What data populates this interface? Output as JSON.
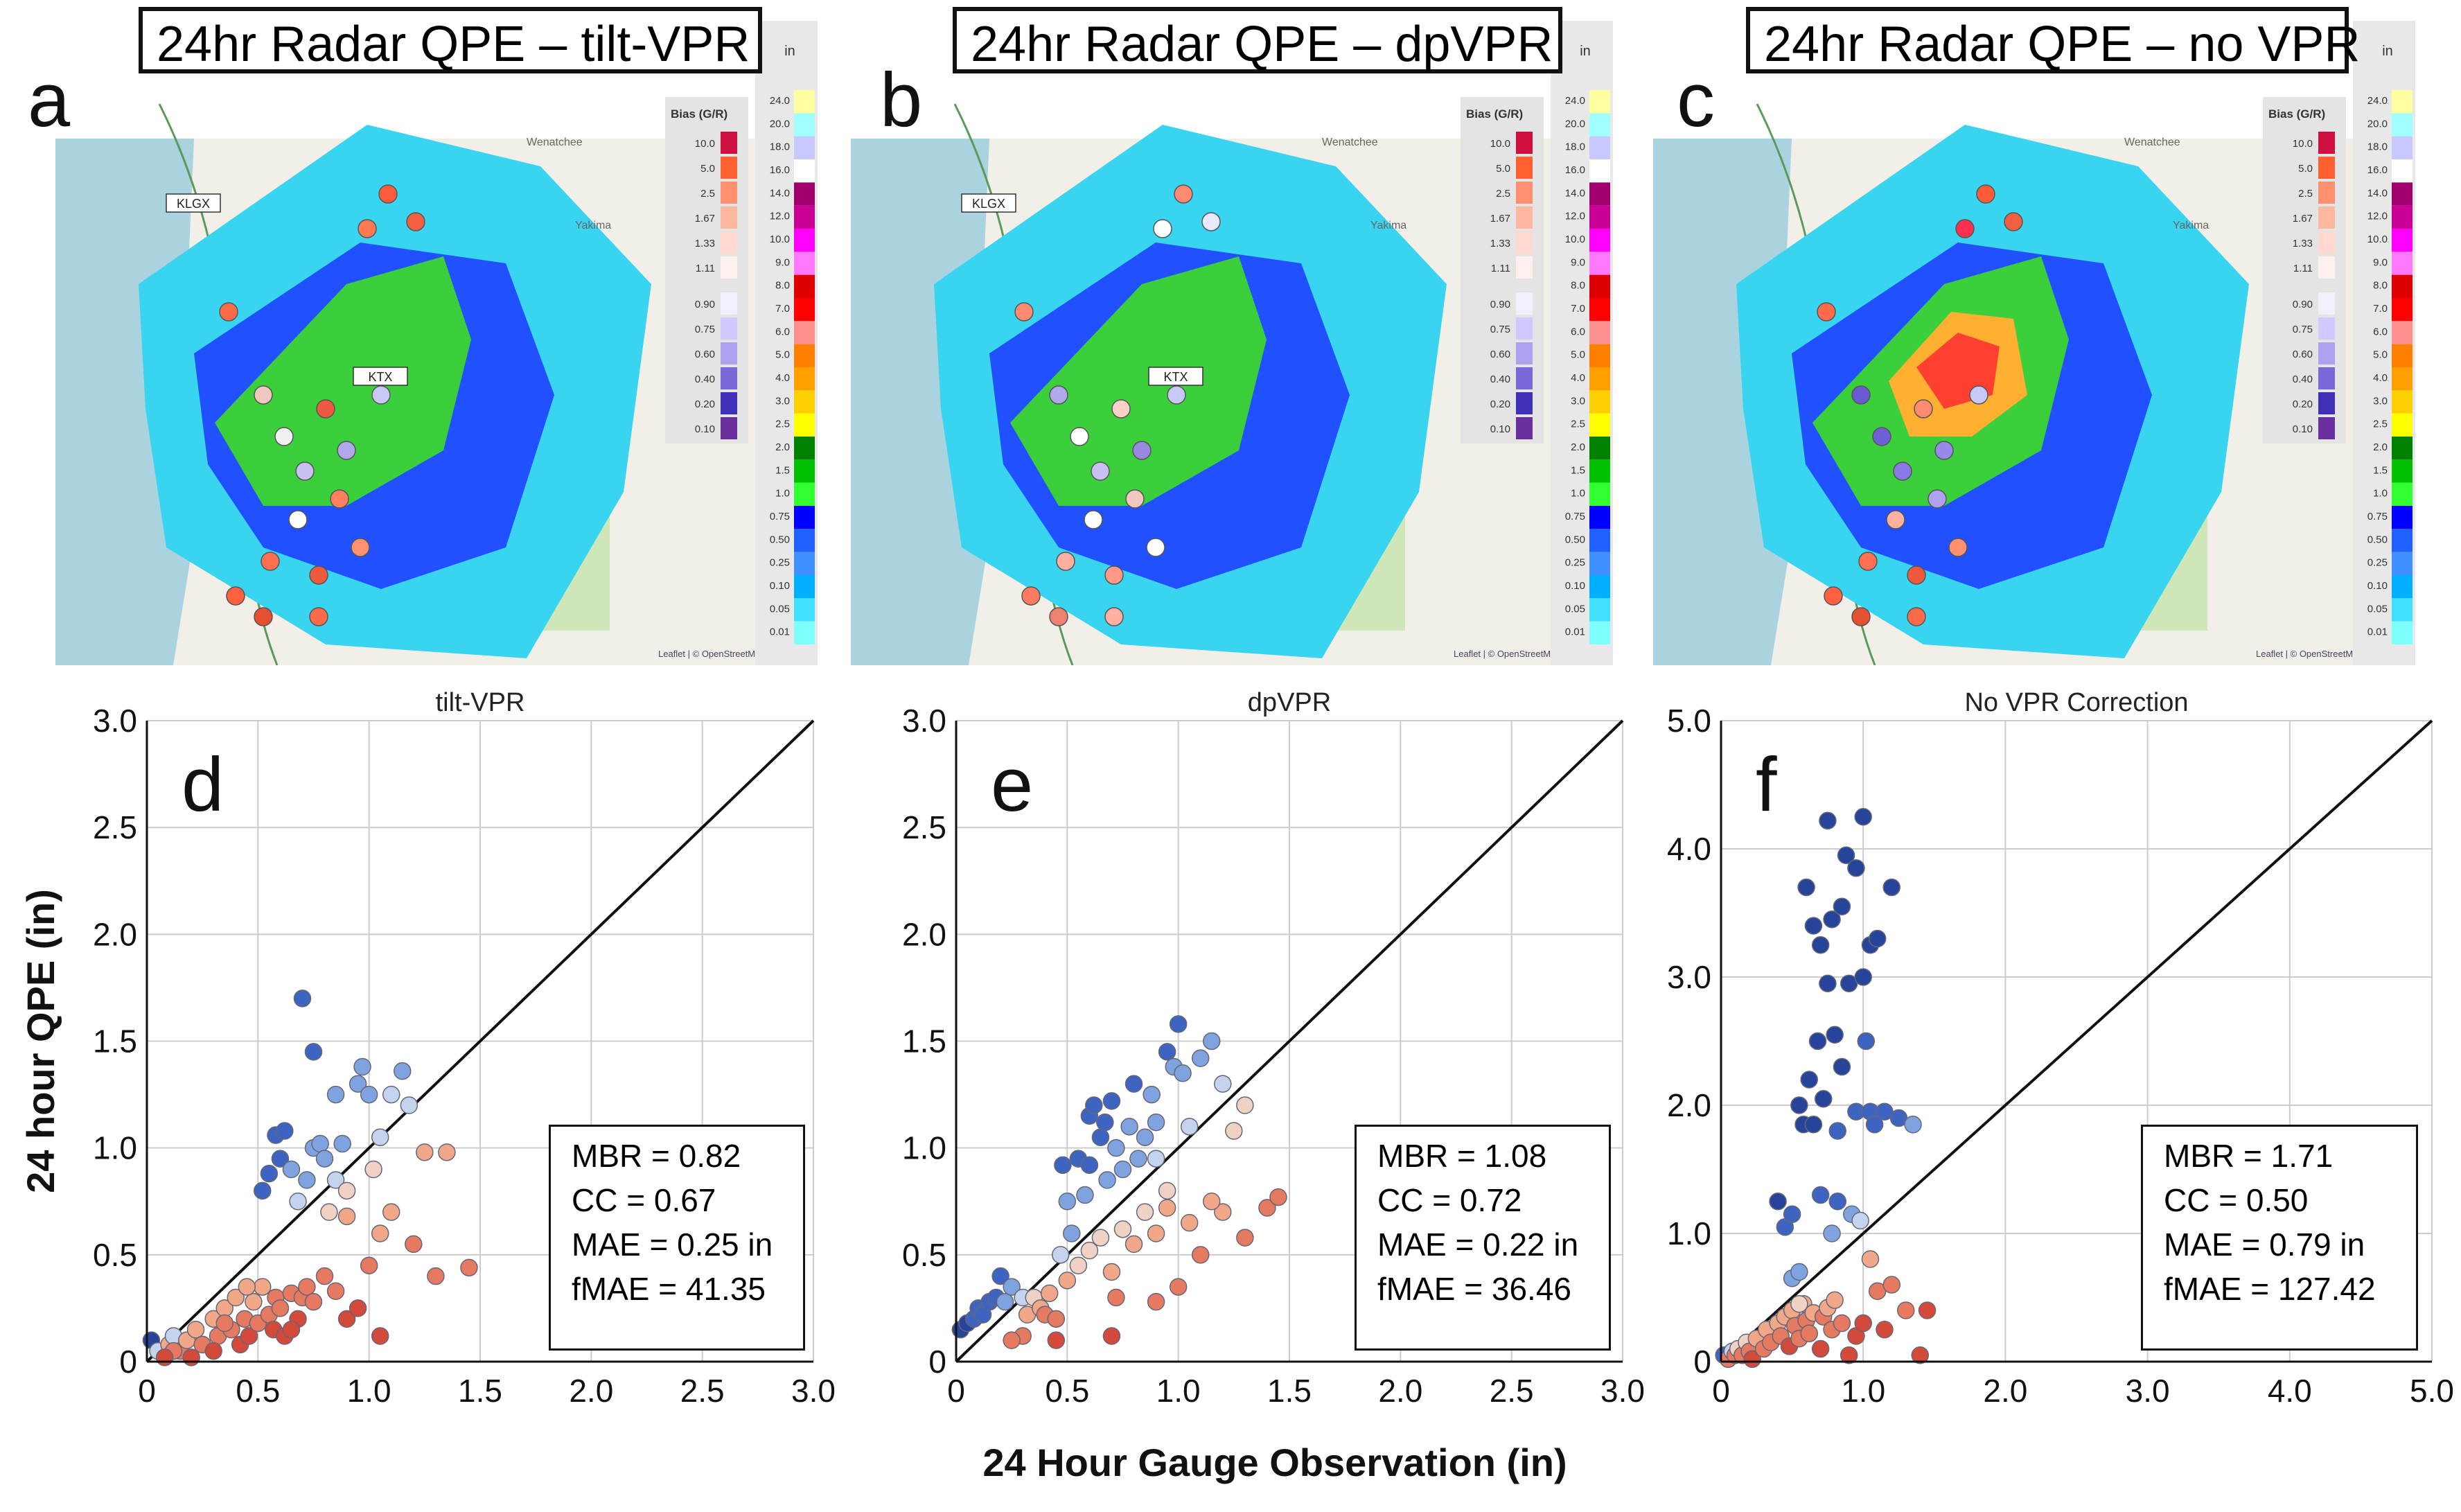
{
  "figure": {
    "maps": [
      {
        "letter": "a",
        "title": "24hr Radar QPE – tilt-VPR",
        "radar_a": "KLGX",
        "radar_b": "KTX"
      },
      {
        "letter": "b",
        "title": "24hr Radar QPE – dpVPR",
        "radar_a": "KLGX",
        "radar_b": "KTX"
      },
      {
        "letter": "c",
        "title": "24hr Radar QPE – no VPR",
        "radar_a": "",
        "radar_b": ""
      }
    ],
    "map_labels": {
      "city": "Wenatchee",
      "city2": "Yakima",
      "attribution": "Leaflet | © OpenStreetMap"
    },
    "bias_legend": {
      "title": "Bias (G/R)",
      "values": [
        "10.0",
        "5.0",
        "2.5",
        "1.67",
        "1.33",
        "1.11",
        "0.90",
        "0.75",
        "0.60",
        "0.40",
        "0.20",
        "0.10"
      ]
    },
    "precip_legend": {
      "unit": "in",
      "values": [
        "24.0",
        "20.0",
        "18.0",
        "16.0",
        "14.0",
        "12.0",
        "10.0",
        "9.0",
        "8.0",
        "7.0",
        "6.0",
        "5.0",
        "4.0",
        "3.0",
        "2.5",
        "2.0",
        "1.5",
        "1.0",
        "0.75",
        "0.50",
        "0.25",
        "0.10",
        "0.05",
        "0.01"
      ],
      "colors": [
        "#ffffa0",
        "#a0ffff",
        "#c8c8ff",
        "#ffffff",
        "#a0006e",
        "#c80096",
        "#ff00ff",
        "#ff78ff",
        "#dc0000",
        "#ff0000",
        "#ff9090",
        "#ff8000",
        "#ffa000",
        "#ffd000",
        "#ffff00",
        "#008000",
        "#00c000",
        "#30ff30",
        "#0000ff",
        "#2060ff",
        "#4090ff",
        "#00b0ff",
        "#40e0ff",
        "#80ffff"
      ]
    },
    "y_axis_label": "24 hour QPE (in)",
    "x_axis_label": "24 Hour Gauge Observation (in)"
  },
  "chart_data": [
    {
      "type": "scatter",
      "letter": "d",
      "title": "tilt-VPR",
      "xlim": [
        0,
        3.0
      ],
      "ylim": [
        0,
        3.0
      ],
      "xticks": [
        "0",
        "0.5",
        "1.0",
        "1.5",
        "2.0",
        "2.5",
        "3.0"
      ],
      "yticks": [
        "0",
        "0.5",
        "1.0",
        "1.5",
        "2.0",
        "2.5",
        "3.0"
      ],
      "stats": [
        "MBR = 0.82",
        "CC = 0.67",
        "MAE = 0.25 in",
        "fMAE = 41.35"
      ],
      "points": [
        [
          0.02,
          0.1
        ],
        [
          0.05,
          0.05
        ],
        [
          0.1,
          0.08
        ],
        [
          0.12,
          0.12
        ],
        [
          0.15,
          0.05
        ],
        [
          0.18,
          0.1
        ],
        [
          0.2,
          0.02
        ],
        [
          0.22,
          0.15
        ],
        [
          0.25,
          0.08
        ],
        [
          0.3,
          0.2
        ],
        [
          0.32,
          0.12
        ],
        [
          0.35,
          0.25
        ],
        [
          0.38,
          0.15
        ],
        [
          0.4,
          0.3
        ],
        [
          0.42,
          0.08
        ],
        [
          0.44,
          0.2
        ],
        [
          0.46,
          0.12
        ],
        [
          0.48,
          0.28
        ],
        [
          0.5,
          0.18
        ],
        [
          0.52,
          0.35
        ],
        [
          0.55,
          0.22
        ],
        [
          0.57,
          0.15
        ],
        [
          0.58,
          0.3
        ],
        [
          0.6,
          0.25
        ],
        [
          0.62,
          0.12
        ],
        [
          0.65,
          0.32
        ],
        [
          0.68,
          0.2
        ],
        [
          0.7,
          0.3
        ],
        [
          0.72,
          0.35
        ],
        [
          0.75,
          0.28
        ],
        [
          0.8,
          0.4
        ],
        [
          0.85,
          0.33
        ],
        [
          0.9,
          0.2
        ],
        [
          1.0,
          0.45
        ],
        [
          1.05,
          0.12
        ],
        [
          1.1,
          0.7
        ],
        [
          1.2,
          0.55
        ],
        [
          1.25,
          0.98
        ],
        [
          1.3,
          0.4
        ],
        [
          1.35,
          0.98
        ],
        [
          1.45,
          0.44
        ],
        [
          1.05,
          0.6
        ],
        [
          0.95,
          0.25
        ],
        [
          0.45,
          0.35
        ],
        [
          0.52,
          0.8
        ],
        [
          0.55,
          0.88
        ],
        [
          0.58,
          1.06
        ],
        [
          0.62,
          1.08
        ],
        [
          0.6,
          0.95
        ],
        [
          0.65,
          0.9
        ],
        [
          0.68,
          0.75
        ],
        [
          0.7,
          1.7
        ],
        [
          0.72,
          0.85
        ],
        [
          0.75,
          1.45
        ],
        [
          0.75,
          1.0
        ],
        [
          0.78,
          1.02
        ],
        [
          0.8,
          0.95
        ],
        [
          0.82,
          0.7
        ],
        [
          0.85,
          0.85
        ],
        [
          0.88,
          1.02
        ],
        [
          0.9,
          0.8
        ],
        [
          0.95,
          1.3
        ],
        [
          0.97,
          1.38
        ],
        [
          1.0,
          1.25
        ],
        [
          1.02,
          0.9
        ],
        [
          1.05,
          1.05
        ],
        [
          1.1,
          1.25
        ],
        [
          1.15,
          1.36
        ],
        [
          1.18,
          1.2
        ],
        [
          0.85,
          1.25
        ],
        [
          0.9,
          0.68
        ],
        [
          0.12,
          0.05
        ],
        [
          0.08,
          0.02
        ],
        [
          0.3,
          0.05
        ],
        [
          0.35,
          0.18
        ],
        [
          0.65,
          0.15
        ]
      ]
    },
    {
      "type": "scatter",
      "letter": "e",
      "title": "dpVPR",
      "xlim": [
        0,
        3.0
      ],
      "ylim": [
        0,
        3.0
      ],
      "xticks": [
        "0",
        "0.5",
        "1.0",
        "1.5",
        "2.0",
        "2.5",
        "3.0"
      ],
      "yticks": [
        "0",
        "0.5",
        "1.0",
        "1.5",
        "2.0",
        "2.5",
        "3.0"
      ],
      "stats": [
        "MBR = 1.08",
        "CC = 0.72",
        "MAE = 0.22 in",
        "fMAE = 36.46"
      ],
      "points": [
        [
          0.02,
          0.15
        ],
        [
          0.05,
          0.18
        ],
        [
          0.08,
          0.2
        ],
        [
          0.1,
          0.25
        ],
        [
          0.12,
          0.22
        ],
        [
          0.15,
          0.28
        ],
        [
          0.18,
          0.3
        ],
        [
          0.2,
          0.4
        ],
        [
          0.22,
          0.28
        ],
        [
          0.25,
          0.35
        ],
        [
          0.3,
          0.3
        ],
        [
          0.32,
          0.22
        ],
        [
          0.35,
          0.3
        ],
        [
          0.38,
          0.25
        ],
        [
          0.4,
          0.22
        ],
        [
          0.42,
          0.32
        ],
        [
          0.45,
          0.2
        ],
        [
          0.47,
          0.5
        ],
        [
          0.48,
          0.92
        ],
        [
          0.5,
          0.75
        ],
        [
          0.52,
          0.6
        ],
        [
          0.55,
          0.95
        ],
        [
          0.58,
          0.78
        ],
        [
          0.6,
          1.15
        ],
        [
          0.6,
          0.92
        ],
        [
          0.62,
          1.2
        ],
        [
          0.65,
          1.05
        ],
        [
          0.67,
          1.12
        ],
        [
          0.68,
          0.85
        ],
        [
          0.7,
          1.22
        ],
        [
          0.72,
          1.0
        ],
        [
          0.75,
          0.9
        ],
        [
          0.78,
          1.1
        ],
        [
          0.8,
          1.3
        ],
        [
          0.82,
          0.95
        ],
        [
          0.85,
          1.05
        ],
        [
          0.88,
          1.25
        ],
        [
          0.9,
          1.12
        ],
        [
          0.95,
          1.45
        ],
        [
          0.98,
          1.38
        ],
        [
          1.0,
          1.58
        ],
        [
          1.02,
          1.35
        ],
        [
          1.05,
          1.1
        ],
        [
          1.1,
          1.42
        ],
        [
          1.15,
          1.5
        ],
        [
          1.2,
          1.3
        ],
        [
          1.25,
          1.08
        ],
        [
          1.3,
          1.2
        ],
        [
          0.9,
          0.95
        ],
        [
          0.95,
          0.8
        ],
        [
          0.5,
          0.38
        ],
        [
          0.55,
          0.45
        ],
        [
          0.6,
          0.52
        ],
        [
          0.65,
          0.58
        ],
        [
          0.7,
          0.42
        ],
        [
          0.72,
          0.3
        ],
        [
          0.75,
          0.62
        ],
        [
          0.8,
          0.55
        ],
        [
          0.85,
          0.7
        ],
        [
          0.9,
          0.6
        ],
        [
          0.95,
          0.72
        ],
        [
          1.0,
          0.35
        ],
        [
          1.05,
          0.65
        ],
        [
          1.1,
          0.5
        ],
        [
          1.2,
          0.7
        ],
        [
          1.3,
          0.58
        ],
        [
          1.4,
          0.72
        ],
        [
          1.45,
          0.77
        ],
        [
          1.15,
          0.75
        ],
        [
          0.45,
          0.1
        ],
        [
          0.7,
          0.12
        ],
        [
          0.9,
          0.28
        ],
        [
          0.3,
          0.12
        ],
        [
          0.25,
          0.1
        ]
      ]
    },
    {
      "type": "scatter",
      "letter": "f",
      "title": "No VPR Correction",
      "xlim": [
        0,
        5.0
      ],
      "ylim": [
        0,
        5.0
      ],
      "xticks": [
        "0",
        "1.0",
        "2.0",
        "3.0",
        "4.0",
        "5.0"
      ],
      "yticks": [
        "0",
        "1.0",
        "2.0",
        "3.0",
        "4.0",
        "5.0"
      ],
      "stats": [
        "MBR = 1.71",
        "CC = 0.50",
        "MAE = 0.79 in",
        "fMAE = 127.42"
      ],
      "points": [
        [
          0.02,
          0.05
        ],
        [
          0.05,
          0.02
        ],
        [
          0.08,
          0.08
        ],
        [
          0.1,
          0.05
        ],
        [
          0.12,
          0.1
        ],
        [
          0.15,
          0.05
        ],
        [
          0.18,
          0.15
        ],
        [
          0.2,
          0.08
        ],
        [
          0.22,
          0.02
        ],
        [
          0.25,
          0.18
        ],
        [
          0.3,
          0.1
        ],
        [
          0.32,
          0.25
        ],
        [
          0.35,
          0.15
        ],
        [
          0.4,
          0.3
        ],
        [
          0.42,
          0.2
        ],
        [
          0.45,
          0.35
        ],
        [
          0.48,
          0.12
        ],
        [
          0.5,
          0.4
        ],
        [
          0.52,
          0.28
        ],
        [
          0.55,
          0.18
        ],
        [
          0.58,
          0.45
        ],
        [
          0.6,
          0.32
        ],
        [
          0.62,
          0.22
        ],
        [
          0.65,
          0.38
        ],
        [
          0.7,
          0.1
        ],
        [
          0.72,
          0.35
        ],
        [
          0.75,
          0.42
        ],
        [
          0.78,
          0.25
        ],
        [
          0.8,
          0.48
        ],
        [
          0.85,
          0.3
        ],
        [
          0.9,
          0.05
        ],
        [
          0.95,
          0.2
        ],
        [
          1.0,
          0.3
        ],
        [
          1.05,
          0.8
        ],
        [
          1.1,
          0.55
        ],
        [
          1.2,
          0.6
        ],
        [
          1.3,
          0.4
        ],
        [
          1.4,
          0.05
        ],
        [
          1.45,
          0.4
        ],
        [
          1.15,
          0.25
        ],
        [
          0.4,
          1.25
        ],
        [
          0.45,
          1.05
        ],
        [
          0.5,
          1.15
        ],
        [
          0.5,
          0.65
        ],
        [
          0.55,
          0.7
        ],
        [
          0.55,
          2.0
        ],
        [
          0.58,
          1.85
        ],
        [
          0.6,
          3.7
        ],
        [
          0.62,
          2.2
        ],
        [
          0.65,
          3.4
        ],
        [
          0.65,
          1.85
        ],
        [
          0.68,
          2.5
        ],
        [
          0.7,
          3.25
        ],
        [
          0.72,
          2.05
        ],
        [
          0.75,
          4.22
        ],
        [
          0.75,
          2.95
        ],
        [
          0.78,
          3.45
        ],
        [
          0.8,
          2.55
        ],
        [
          0.82,
          1.8
        ],
        [
          0.82,
          1.25
        ],
        [
          0.85,
          3.55
        ],
        [
          0.85,
          2.3
        ],
        [
          0.88,
          3.95
        ],
        [
          0.9,
          2.95
        ],
        [
          0.92,
          1.15
        ],
        [
          0.95,
          1.95
        ],
        [
          0.95,
          3.85
        ],
        [
          0.98,
          1.1
        ],
        [
          1.0,
          4.25
        ],
        [
          1.0,
          3.0
        ],
        [
          1.02,
          2.5
        ],
        [
          1.05,
          3.25
        ],
        [
          1.05,
          1.95
        ],
        [
          1.08,
          1.85
        ],
        [
          1.1,
          3.3
        ],
        [
          1.15,
          1.95
        ],
        [
          1.2,
          3.7
        ],
        [
          1.25,
          1.9
        ],
        [
          1.35,
          1.85
        ],
        [
          0.7,
          1.3
        ],
        [
          0.78,
          1.0
        ],
        [
          0.55,
          0.45
        ]
      ]
    }
  ]
}
